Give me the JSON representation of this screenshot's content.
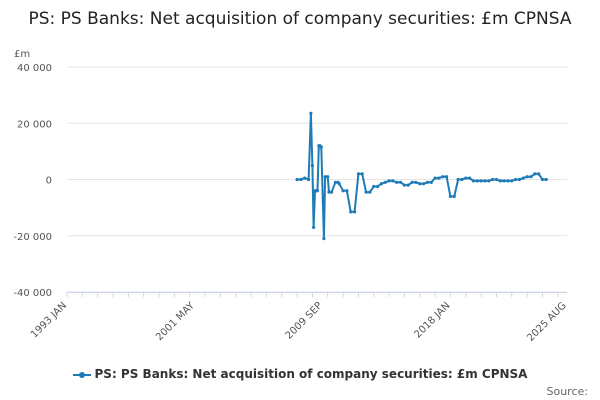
{
  "chart_data": {
    "type": "line",
    "title": "PS: PS Banks: Net acquisition of company securities: £m CPNSA",
    "ylabel": "£m",
    "xlabel": "",
    "ylim": [
      -40000,
      40000
    ],
    "yticks": [
      "40 000",
      "20 000",
      "0",
      "-20 000",
      "-40 000"
    ],
    "ytick_values": [
      40000,
      20000,
      0,
      -20000,
      -40000
    ],
    "xlim": [
      1993.0,
      2025.6
    ],
    "xticks": [
      "1993 JAN",
      "2001 MAY",
      "2009 SEP",
      "2018 JAN",
      "2025 AUG"
    ],
    "xtick_values": [
      1993.0,
      2001.33,
      2009.67,
      2018.0,
      2025.58
    ],
    "grid": true,
    "legend_position": "bottom",
    "series": [
      {
        "name": "PS: PS Banks: Net acquisition of company securities: £m CPNSA",
        "color": "#1f7bb6",
        "x": [
          2008.0,
          2008.25,
          2008.5,
          2008.75,
          2008.9,
          2009.0,
          2009.08,
          2009.17,
          2009.25,
          2009.33,
          2009.42,
          2009.5,
          2009.58,
          2009.75,
          2009.83,
          2010.0,
          2010.08,
          2010.25,
          2010.5,
          2010.67,
          2010.75,
          2011.0,
          2011.25,
          2011.5,
          2011.75,
          2012.0,
          2012.25,
          2012.5,
          2012.75,
          2013.0,
          2013.25,
          2013.5,
          2013.75,
          2014.0,
          2014.25,
          2014.5,
          2014.75,
          2015.0,
          2015.25,
          2015.5,
          2015.75,
          2016.0,
          2016.25,
          2016.5,
          2016.75,
          2017.0,
          2017.25,
          2017.5,
          2017.75,
          2018.0,
          2018.25,
          2018.5,
          2018.75,
          2019.0,
          2019.25,
          2019.5,
          2019.75,
          2020.0,
          2020.25,
          2020.5,
          2020.75,
          2021.0,
          2021.25,
          2021.5,
          2021.75,
          2022.0,
          2022.25,
          2022.5,
          2022.75,
          2023.0,
          2023.25,
          2023.5,
          2023.75,
          2024.0,
          2024.25,
          2024.5,
          2024.75,
          2025.0
        ],
        "y": [
          0,
          0,
          500,
          0,
          23500,
          5000,
          -17000,
          -4000,
          -4000,
          -4000,
          12000,
          12000,
          11500,
          -21000,
          1000,
          1000,
          -4500,
          -4500,
          -1000,
          -1000,
          -1500,
          -4000,
          -4000,
          -11500,
          -11500,
          2000,
          2000,
          -4500,
          -4500,
          -2500,
          -2500,
          -1500,
          -1000,
          -500,
          -500,
          -1000,
          -1000,
          -2000,
          -2000,
          -1000,
          -1000,
          -1500,
          -1500,
          -1000,
          -1000,
          500,
          500,
          1000,
          1000,
          -6000,
          -6000,
          0,
          0,
          500,
          500,
          -500,
          -500,
          -500,
          -500,
          -500,
          0,
          0,
          -500,
          -500,
          -500,
          -500,
          0,
          0,
          500,
          1000,
          1000,
          2000,
          2000,
          0,
          0,
          null,
          null,
          null
        ]
      }
    ]
  },
  "credits": "Source:"
}
